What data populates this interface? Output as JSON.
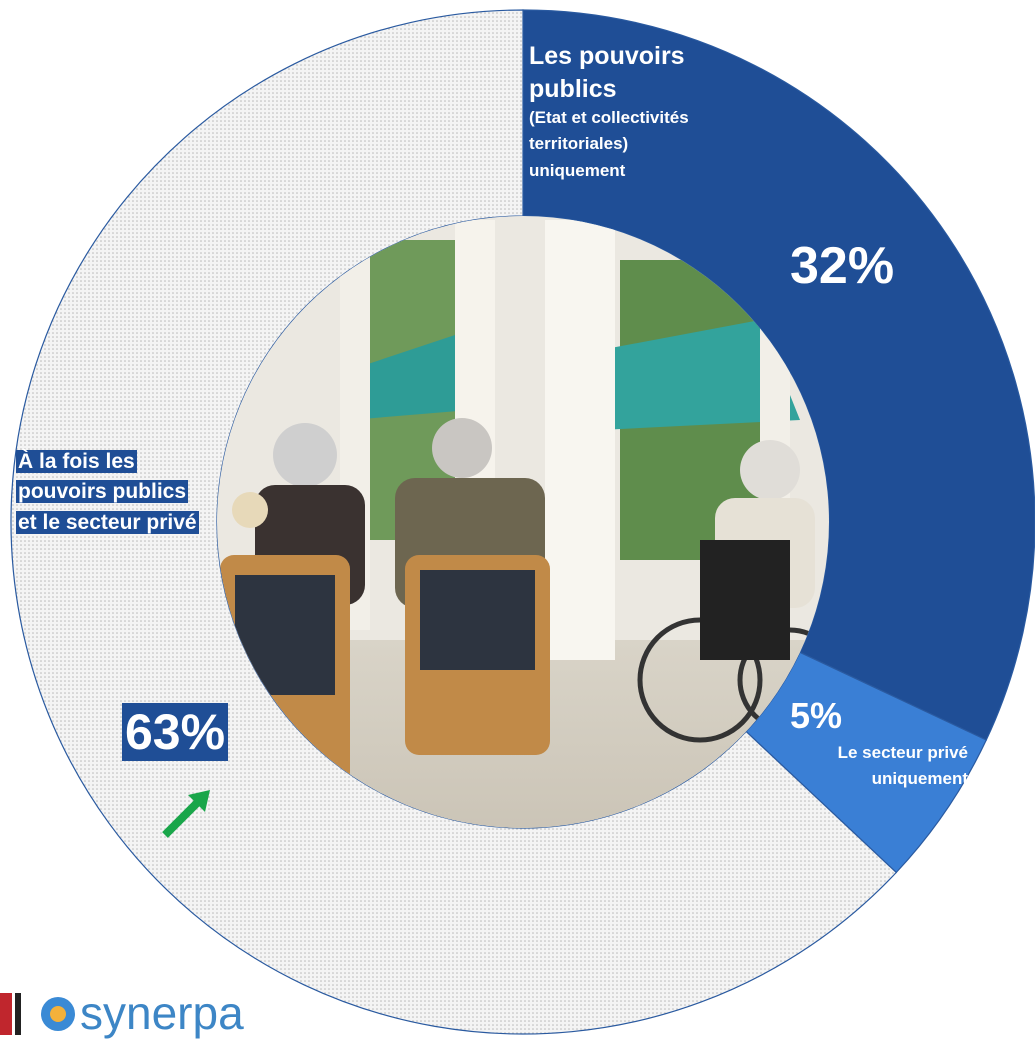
{
  "chart_data": {
    "type": "donut",
    "categories": [
      "Les pouvoirs publics",
      "Le secteur privé uniquement",
      "À la fois les pouvoirs publics et le secteur privé"
    ],
    "category_details": [
      "(Etat et collectivités territoriales) uniquement",
      null,
      null
    ],
    "values": [
      32,
      5,
      63
    ],
    "value_labels": [
      "32%",
      "5%",
      "63%"
    ],
    "colors": [
      "#1f4e96",
      "#3a7fd5",
      "pattern"
    ]
  },
  "logo": "synerpa"
}
